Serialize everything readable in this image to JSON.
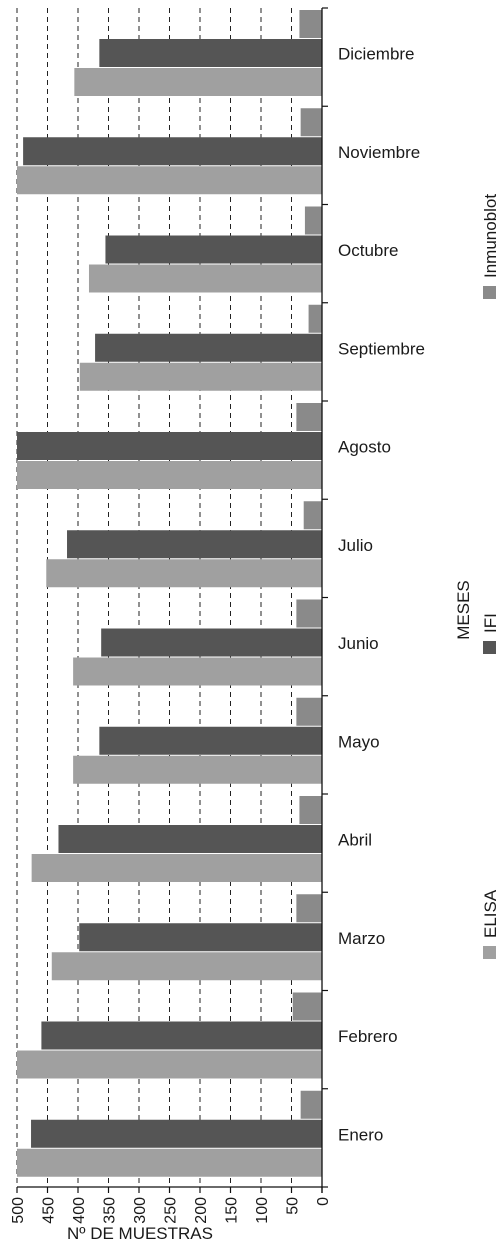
{
  "chart_data": {
    "type": "bar",
    "orientation": "horizontal",
    "title": "",
    "xlabel": "Nº  DE  MUESTRAS",
    "ylabel": "MESES",
    "xlim": [
      0,
      500
    ],
    "x_ticks": [
      "500",
      "450",
      "400",
      "350",
      "300",
      "250",
      "200",
      "150",
      "100",
      "50",
      "0"
    ],
    "x_axis_reversed": true,
    "grid": "vertical dashed",
    "legend_position": "right",
    "categories": [
      "Diciembre",
      "Noviembre",
      "Octubre",
      "Septiembre",
      "Agosto",
      "Julio",
      "Junio",
      "Mayo",
      "Abril",
      "Marzo",
      "Febrero",
      "Enero"
    ],
    "series": [
      {
        "name": "Inmunoblot",
        "color": "#8a8a8a",
        "values": [
          37,
          35,
          28,
          22,
          42,
          30,
          42,
          42,
          37,
          42,
          48,
          35
        ]
      },
      {
        "name": "IFI",
        "color": "#555555",
        "values": [
          365,
          490,
          355,
          372,
          500,
          418,
          362,
          365,
          432,
          398,
          460,
          477
        ]
      },
      {
        "name": "ELISA",
        "color": "#a0a0a0",
        "values": [
          406,
          500,
          382,
          397,
          500,
          452,
          408,
          408,
          476,
          443,
          500,
          500
        ]
      }
    ]
  }
}
